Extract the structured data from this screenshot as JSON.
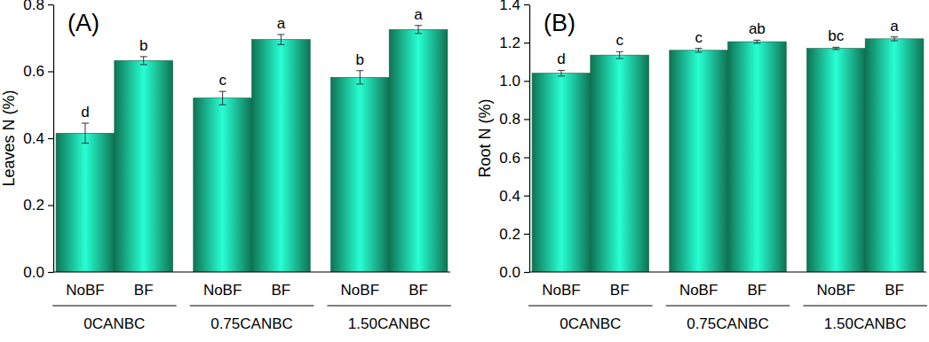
{
  "chart_data": [
    {
      "type": "bar",
      "title": "(A)",
      "y_label": "Leaves N (%)",
      "categories": [
        "NoBF",
        "BF",
        "NoBF",
        "BF",
        "NoBF",
        "BF"
      ],
      "groups": [
        "0CANBC",
        "0.75CANBC",
        "1.50CANBC"
      ],
      "values": [
        0.415,
        0.632,
        0.52,
        0.695,
        0.582,
        0.725
      ],
      "errors": [
        0.03,
        0.012,
        0.02,
        0.015,
        0.02,
        0.012
      ],
      "annotations": [
        "d",
        "b",
        "c",
        "a",
        "b",
        "a"
      ],
      "color": "#16a577",
      "ylim": [
        0,
        0.8
      ],
      "yticks": [
        {
          "value": 0,
          "label": "0.0"
        },
        0.2,
        0.4,
        0.6,
        0.8
      ],
      "grid": false
    },
    {
      "type": "bar",
      "title": "(B)",
      "y_label": "Root N (%)",
      "categories": [
        "NoBF",
        "BF",
        "NoBF",
        "BF",
        "NoBF",
        "BF"
      ],
      "groups": [
        "0CANBC",
        "0.75CANBC",
        "1.50CANBC"
      ],
      "values": [
        1.04,
        1.135,
        1.16,
        1.205,
        1.17,
        1.22
      ],
      "errors": [
        0.015,
        0.018,
        0.01,
        0.008,
        0.006,
        0.01
      ],
      "annotations": [
        "d",
        "c",
        "c",
        "ab",
        "bc",
        "a"
      ],
      "color": "#16a577",
      "ylim": [
        0,
        1.4
      ],
      "yticks": [
        {
          "value": 0,
          "label": "0.0"
        },
        0.2,
        0.4,
        0.6,
        0.8,
        {
          "value": 1,
          "label": "1.0"
        },
        1.2,
        1.4
      ],
      "grid": false
    }
  ]
}
